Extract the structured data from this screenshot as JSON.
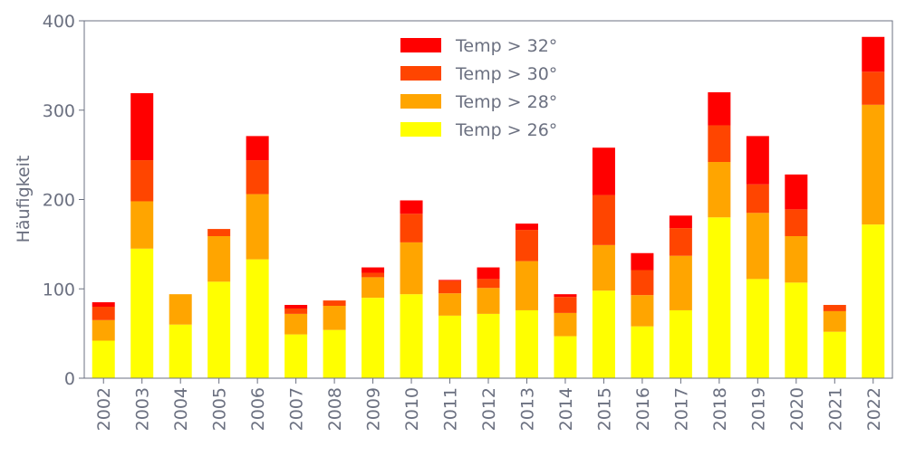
{
  "chart_data": {
    "type": "stacked_bar",
    "ylabel": "Häufigkeit",
    "categories": [
      "2002",
      "2003",
      "2004",
      "2005",
      "2006",
      "2007",
      "2008",
      "2009",
      "2010",
      "2011",
      "2012",
      "2013",
      "2014",
      "2015",
      "2016",
      "2017",
      "2018",
      "2019",
      "2020",
      "2021",
      "2022"
    ],
    "series": [
      {
        "name": "Temp > 26°",
        "color": "#ffff00",
        "values": [
          42,
          145,
          60,
          108,
          133,
          49,
          54,
          90,
          94,
          70,
          72,
          76,
          47,
          98,
          58,
          76,
          180,
          111,
          107,
          52,
          172
        ]
      },
      {
        "name": "Temp > 28°",
        "color": "#ffa500",
        "values": [
          23,
          53,
          34,
          51,
          73,
          23,
          27,
          23,
          58,
          25,
          29,
          55,
          26,
          51,
          35,
          61,
          62,
          74,
          52,
          23,
          134
        ]
      },
      {
        "name": "Temp > 30°",
        "color": "#ff4500",
        "values": [
          15,
          46,
          0,
          8,
          38,
          6,
          6,
          5,
          32,
          14,
          10,
          35,
          18,
          56,
          28,
          31,
          41,
          32,
          30,
          7,
          37
        ]
      },
      {
        "name": "Temp > 32°",
        "color": "#ff0000",
        "values": [
          5,
          75,
          0,
          0,
          27,
          4,
          0,
          6,
          15,
          1,
          13,
          7,
          3,
          53,
          19,
          14,
          37,
          54,
          39,
          0,
          39
        ]
      }
    ],
    "ylim": [
      0,
      400
    ],
    "yticks": [
      0,
      100,
      200,
      300,
      400
    ],
    "legend": "upper center"
  }
}
